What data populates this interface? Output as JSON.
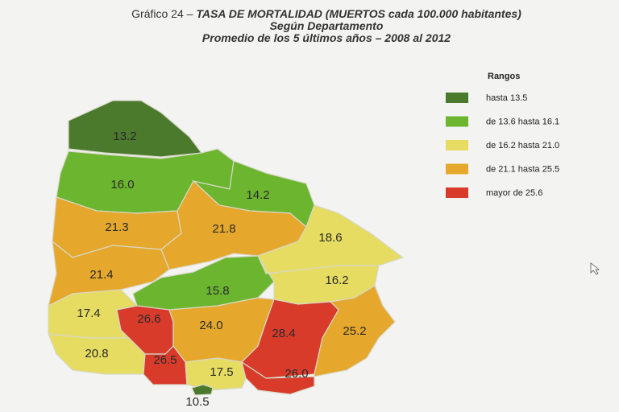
{
  "header": {
    "prefix": "Gráfico 24 –",
    "title": "TASA DE MORTALIDAD (MUERTOS cada 100.000 habitantes)",
    "subtitle": "Según Departamento",
    "subtitle2": "Promedio de los 5 últimos años – 2008 al 2012"
  },
  "legend": {
    "title": "Rangos",
    "items": [
      {
        "label": "hasta 13.5",
        "color": "#4b7a2c"
      },
      {
        "label": "de 13.6 hasta 16.1",
        "color": "#6cb52f"
      },
      {
        "label": "de 16.2 hasta 21.0",
        "color": "#e6dc62"
      },
      {
        "label": "de 21.1 hasta 25.5",
        "color": "#e5a82c"
      },
      {
        "label": "mayor de 25.6",
        "color": "#d93b2b"
      }
    ]
  },
  "regions": [
    {
      "label": "13.2",
      "color": "#4b7a2c"
    },
    {
      "label": "16.0",
      "color": "#6cb52f"
    },
    {
      "label": "14.2",
      "color": "#6cb52f"
    },
    {
      "label": "21.3",
      "color": "#e5a82c"
    },
    {
      "label": "21.8",
      "color": "#e5a82c"
    },
    {
      "label": "18.6",
      "color": "#e6dc62"
    },
    {
      "label": "21.4",
      "color": "#e5a82c"
    },
    {
      "label": "15.8",
      "color": "#6cb52f"
    },
    {
      "label": "16.2",
      "color": "#e6dc62"
    },
    {
      "label": "17.4",
      "color": "#e6dc62"
    },
    {
      "label": "26.6",
      "color": "#d93b2b"
    },
    {
      "label": "24.0",
      "color": "#e5a82c"
    },
    {
      "label": "28.4",
      "color": "#d93b2b"
    },
    {
      "label": "25.2",
      "color": "#e5a82c"
    },
    {
      "label": "20.8",
      "color": "#e6dc62"
    },
    {
      "label": "26.5",
      "color": "#d93b2b"
    },
    {
      "label": "17.5",
      "color": "#e6dc62"
    },
    {
      "label": "26.0",
      "color": "#d93b2b"
    },
    {
      "label": "10.5",
      "color": "#4b7a2c"
    }
  ]
}
